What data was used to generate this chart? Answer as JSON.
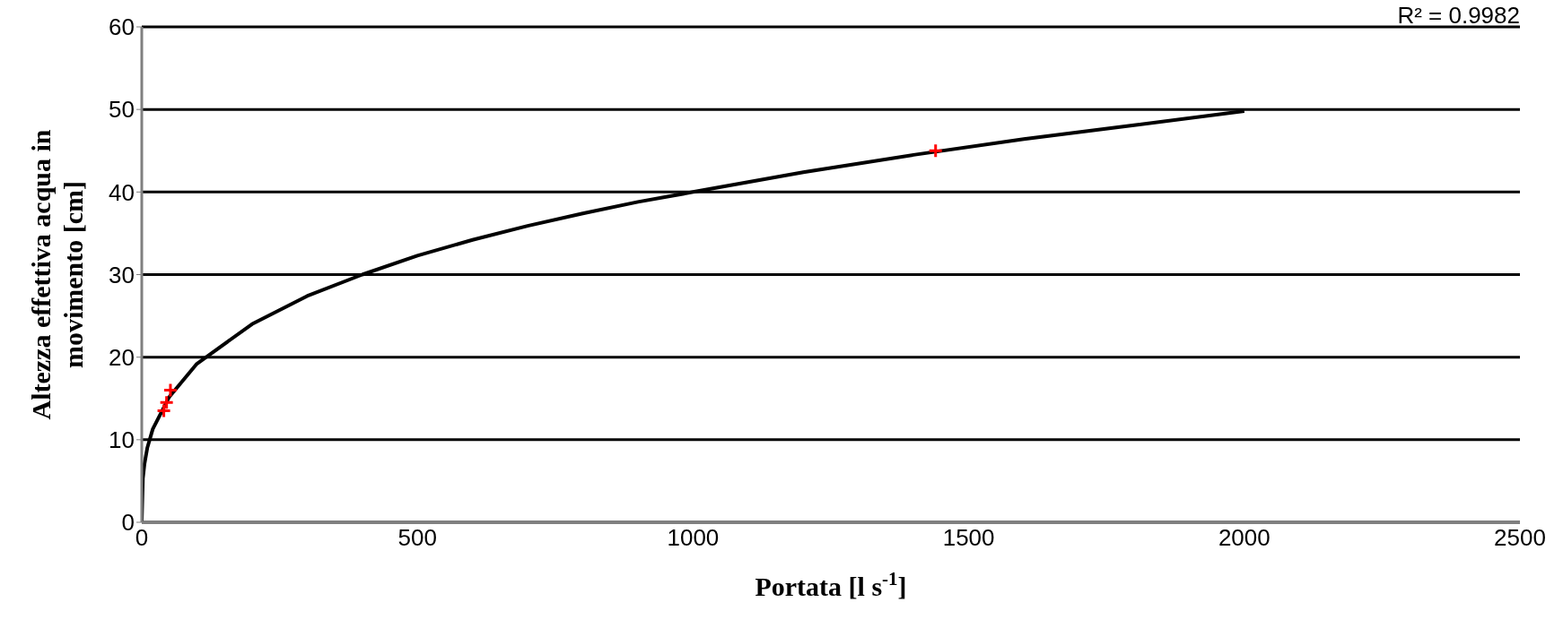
{
  "chart_data": {
    "type": "scatter",
    "xlabel": "Portata [l s$^{-1}$]",
    "ylabel": "Altezza effettiva acqua in movimento [cm]",
    "annotations": [
      "R² = 0.9982"
    ],
    "xlim": [
      0,
      2500
    ],
    "xticks": [
      0,
      500,
      1000,
      1500,
      2000,
      2500
    ],
    "ylim": [
      0,
      60
    ],
    "yticks": [
      0,
      10,
      20,
      30,
      40,
      50,
      60
    ],
    "grid": "y",
    "series": [
      {
        "type": "line",
        "color": "#000000",
        "marker": "none",
        "line_style": "solid",
        "x": [
          0,
          2,
          5,
          10,
          20,
          50,
          100,
          200,
          300,
          400,
          500,
          600,
          700,
          800,
          900,
          1000,
          1200,
          1400,
          1600,
          1800,
          2000
        ],
        "values": [
          0,
          5.3,
          7.1,
          9,
          11.3,
          15.2,
          19.2,
          24,
          27.4,
          30,
          32.3,
          34.2,
          35.9,
          37.4,
          38.8,
          40,
          42.4,
          44.5,
          46.4,
          48.1,
          49.8
        ]
      },
      {
        "color": "#ff0000",
        "marker": "cross",
        "x": [
          40,
          45,
          52,
          1440
        ],
        "values": [
          13.5,
          14.5,
          16,
          45
        ]
      }
    ]
  }
}
